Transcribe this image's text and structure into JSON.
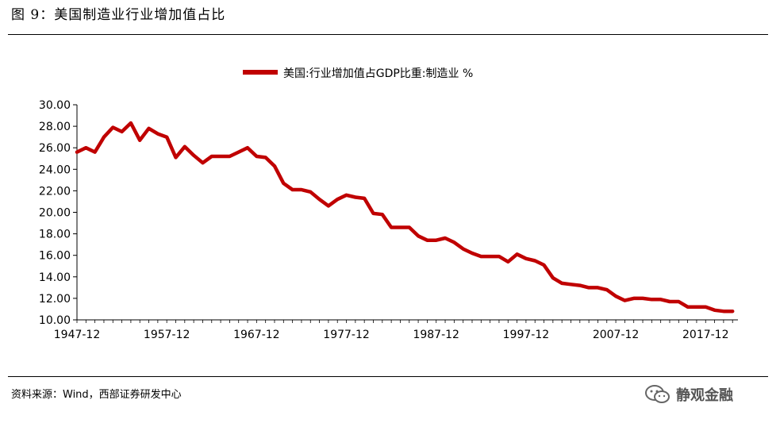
{
  "figure": {
    "title": "图 9：美国制造业行业增加值占比",
    "source": "资料来源：Wind，西部证券研发中心",
    "brand": "静观金融",
    "brand_icon": "wechat-icon"
  },
  "colors": {
    "series": "#c00000",
    "axis": "#000000",
    "text": "#000000"
  },
  "chart_data": {
    "type": "line",
    "title": "",
    "xlabel": "",
    "ylabel": "",
    "ylim": [
      10,
      30
    ],
    "yticks": [
      "30.00",
      "28.00",
      "26.00",
      "24.00",
      "22.00",
      "20.00",
      "18.00",
      "16.00",
      "14.00",
      "12.00",
      "10.00"
    ],
    "xticks": [
      "1947-12",
      "1957-12",
      "1967-12",
      "1977-12",
      "1987-12",
      "1997-12",
      "2007-12",
      "2017-12"
    ],
    "grid": false,
    "legend_position": "top-center",
    "series": [
      {
        "name": "美国:行业增加值占GDP比重:制造业 %",
        "x": [
          1947,
          1948,
          1949,
          1950,
          1951,
          1952,
          1953,
          1954,
          1955,
          1956,
          1957,
          1958,
          1959,
          1960,
          1961,
          1962,
          1963,
          1964,
          1965,
          1966,
          1967,
          1968,
          1969,
          1970,
          1971,
          1972,
          1973,
          1974,
          1975,
          1976,
          1977,
          1978,
          1979,
          1980,
          1981,
          1982,
          1983,
          1984,
          1985,
          1986,
          1987,
          1988,
          1989,
          1990,
          1991,
          1992,
          1993,
          1994,
          1995,
          1996,
          1997,
          1998,
          1999,
          2000,
          2001,
          2002,
          2003,
          2004,
          2005,
          2006,
          2007,
          2008,
          2009,
          2010,
          2011,
          2012,
          2013,
          2014,
          2015,
          2016,
          2017,
          2018,
          2019,
          2020
        ],
        "values": [
          25.6,
          26.0,
          25.6,
          27.0,
          27.9,
          27.5,
          28.3,
          26.7,
          27.8,
          27.3,
          27.0,
          25.1,
          26.1,
          25.3,
          24.6,
          25.2,
          25.2,
          25.2,
          25.6,
          26.0,
          25.2,
          25.1,
          24.3,
          22.7,
          22.1,
          22.1,
          21.9,
          21.2,
          20.6,
          21.2,
          21.6,
          21.4,
          21.3,
          19.9,
          19.8,
          18.6,
          18.6,
          18.6,
          17.8,
          17.4,
          17.4,
          17.6,
          17.2,
          16.6,
          16.2,
          15.9,
          15.9,
          15.9,
          15.4,
          16.1,
          15.7,
          15.5,
          15.1,
          13.9,
          13.4,
          13.3,
          13.2,
          13.0,
          13.0,
          12.8,
          12.2,
          11.8,
          12.0,
          12.0,
          11.9,
          11.9,
          11.7,
          11.7,
          11.2,
          11.2,
          11.2,
          10.9,
          10.8,
          10.8
        ]
      }
    ]
  }
}
